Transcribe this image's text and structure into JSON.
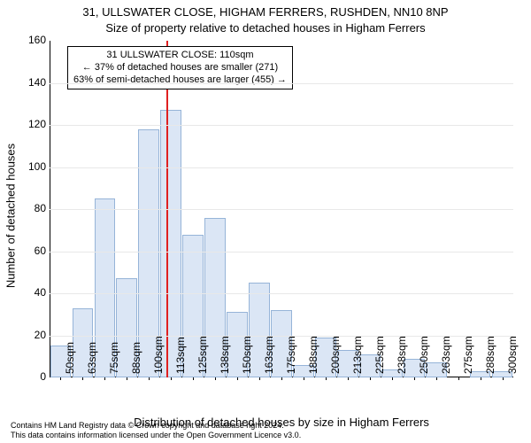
{
  "chart": {
    "type": "histogram",
    "title": "31, ULLSWATER CLOSE, HIGHAM FERRERS, RUSHDEN, NN10 8NP",
    "subtitle": "Size of property relative to detached houses in Higham Ferrers",
    "xlabel": "Distribution of detached houses by size in Higham Ferrers",
    "ylabel": "Number of detached houses",
    "background_color": "#ffffff",
    "grid_color": "#e8e8e8",
    "bar_fill": "#dbe6f5",
    "bar_border": "#96b4d8",
    "bar_width": 0.95,
    "title_fontsize": 13,
    "label_fontsize": 13,
    "tick_fontsize": 12,
    "y": {
      "min": 0,
      "max": 160,
      "tick_step": 20
    },
    "x_categories": [
      "50sqm",
      "63sqm",
      "75sqm",
      "88sqm",
      "100sqm",
      "113sqm",
      "125sqm",
      "138sqm",
      "150sqm",
      "163sqm",
      "175sqm",
      "188sqm",
      "200sqm",
      "213sqm",
      "225sqm",
      "238sqm",
      "250sqm",
      "263sqm",
      "275sqm",
      "288sqm",
      "300sqm"
    ],
    "values": [
      15,
      33,
      85,
      47,
      118,
      127,
      68,
      76,
      31,
      45,
      32,
      6,
      19,
      13,
      11,
      4,
      9,
      7,
      0,
      3,
      3
    ],
    "marker": {
      "position_index": 4.8,
      "color": "#e02020"
    },
    "annotation": {
      "line1": "31 ULLSWATER CLOSE: 110sqm",
      "line2": "← 37% of detached houses are smaller (271)",
      "line3": "63% of semi-detached houses are larger (455) →",
      "border_color": "#000000",
      "bg_color": "#ffffff",
      "fontsize": 11
    }
  },
  "attribution": {
    "line1": "Contains HM Land Registry data © Crown copyright and database right 2024.",
    "line2": "This data contains information licensed under the Open Government Licence v3.0."
  }
}
